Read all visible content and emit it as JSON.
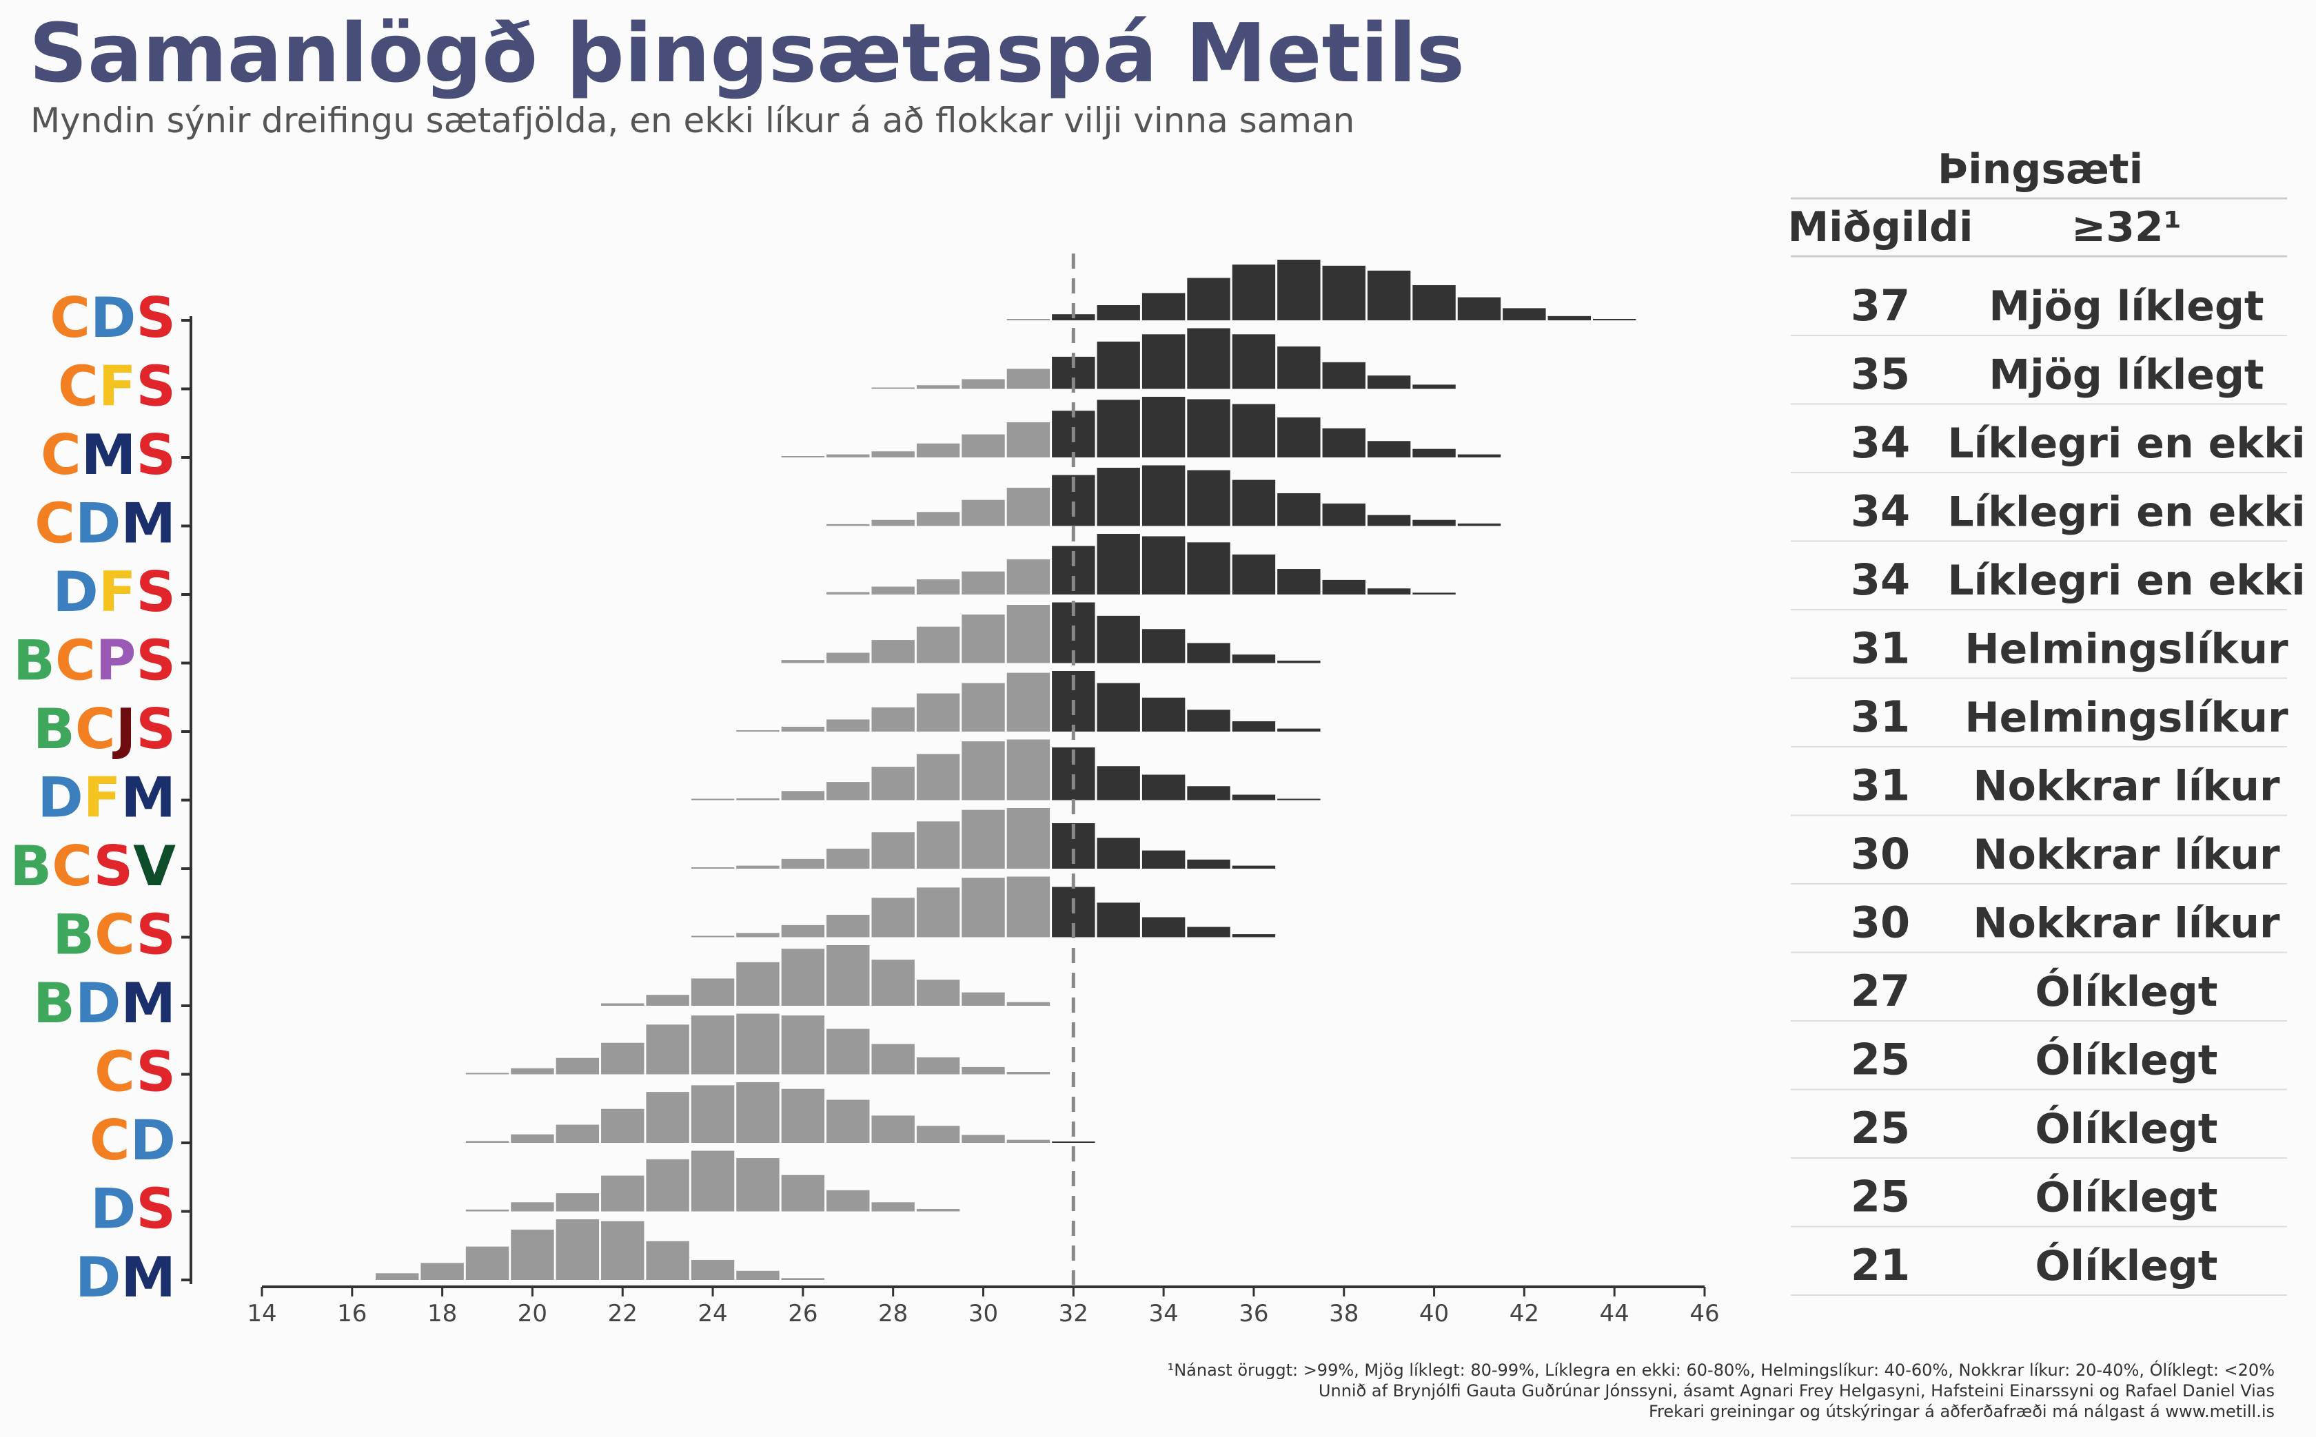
{
  "title": "Samanlögð þingsætaspá Metils",
  "subtitle": "Myndin sýnir dreifingu sætafjölda, en ekki líkur á að flokkar vilji vinna saman",
  "table": {
    "header_top": "Þingsæti",
    "col_median": "Miðgildi",
    "col_prob": "≥32¹"
  },
  "footer": {
    "note": "¹Nánast öruggt: >99%, Mjög líklegt: 80-99%, Líklegra en ekki: 60-80%, Helmingslíkur: 40-60%, Nokkrar líkur: 20-40%, Ólíklegt: <20%",
    "credit": "Unnið af Brynjólfi Gauta Guðrúnar Jónssyni, ásamt Agnari Frey Helgasyni, Hafsteini Einarssyni og Rafael Daniel Vias",
    "more": "Frekari greiningar og útskýringar á aðferðafræði má nálgast á www.metill.is"
  },
  "party_colors": {
    "B": "#3fa75c",
    "C": "#f28022",
    "D": "#3b7fbf",
    "F": "#f5c31f",
    "J": "#6e0c10",
    "M": "#1b2f6d",
    "P": "#9b59b6",
    "S": "#e0262a",
    "V": "#0e4d2a"
  },
  "bar_colors": {
    "below": "#999999",
    "above": "#333333"
  },
  "chart_data": {
    "type": "bar",
    "subtype": "stacked-histograms",
    "xlim": [
      14,
      46
    ],
    "x_ticks": [
      14,
      16,
      18,
      20,
      22,
      24,
      26,
      28,
      30,
      32,
      34,
      36,
      38,
      40,
      42,
      44,
      46
    ],
    "threshold": 32,
    "threshold_style": "dashed",
    "grid": false,
    "rows": [
      {
        "label": "CDS",
        "median": 37,
        "prob": "Mjög líklegt",
        "x_start": 31,
        "values": [
          0.02,
          0.1,
          0.25,
          0.45,
          0.7,
          0.92,
          1.0,
          0.9,
          0.82,
          0.58,
          0.38,
          0.2,
          0.07,
          0.02
        ]
      },
      {
        "label": "CFS",
        "median": 35,
        "prob": "Mjög líklegt",
        "x_start": 28,
        "values": [
          0.02,
          0.06,
          0.16,
          0.33,
          0.53,
          0.78,
          0.9,
          1.0,
          0.9,
          0.7,
          0.44,
          0.22,
          0.07
        ]
      },
      {
        "label": "CMS",
        "median": 34,
        "prob": "Líklegri en ekki",
        "x_start": 26,
        "values": [
          0.02,
          0.05,
          0.1,
          0.23,
          0.38,
          0.58,
          0.77,
          0.95,
          1.0,
          0.96,
          0.88,
          0.66,
          0.48,
          0.27,
          0.14,
          0.05
        ]
      },
      {
        "label": "CDM",
        "median": 34,
        "prob": "Líklegri en ekki",
        "x_start": 27,
        "values": [
          0.03,
          0.1,
          0.23,
          0.43,
          0.63,
          0.84,
          0.96,
          1.0,
          0.92,
          0.76,
          0.54,
          0.37,
          0.18,
          0.1,
          0.04
        ]
      },
      {
        "label": "DFS",
        "median": 34,
        "prob": "Líklegri en ekki",
        "x_start": 27,
        "values": [
          0.04,
          0.13,
          0.25,
          0.38,
          0.58,
          0.8,
          1.0,
          0.96,
          0.86,
          0.66,
          0.42,
          0.24,
          0.1,
          0.03
        ]
      },
      {
        "label": "BCPS",
        "median": 31,
        "prob": "Helmingslíkur",
        "x_start": 26,
        "values": [
          0.05,
          0.17,
          0.38,
          0.6,
          0.8,
          0.96,
          1.0,
          0.78,
          0.56,
          0.33,
          0.14,
          0.04
        ]
      },
      {
        "label": "BCJS",
        "median": 31,
        "prob": "Helmingslíkur",
        "x_start": 25,
        "values": [
          0.02,
          0.08,
          0.2,
          0.4,
          0.63,
          0.8,
          0.97,
          1.0,
          0.8,
          0.56,
          0.36,
          0.17,
          0.05
        ]
      },
      {
        "label": "DFM",
        "median": 31,
        "prob": "Nokkrar líkur",
        "x_start": 24,
        "values": [
          0.01,
          0.03,
          0.15,
          0.3,
          0.55,
          0.76,
          0.97,
          1.0,
          0.87,
          0.56,
          0.42,
          0.23,
          0.09,
          0.02
        ]
      },
      {
        "label": "BCSV",
        "median": 30,
        "prob": "Nokkrar líkur",
        "x_start": 24,
        "values": [
          0.01,
          0.05,
          0.16,
          0.33,
          0.6,
          0.78,
          0.97,
          1.0,
          0.75,
          0.51,
          0.3,
          0.15,
          0.05
        ]
      },
      {
        "label": "BCS",
        "median": 30,
        "prob": "Nokkrar líkur",
        "x_start": 24,
        "values": [
          0.02,
          0.07,
          0.2,
          0.37,
          0.65,
          0.82,
          0.98,
          1.0,
          0.83,
          0.57,
          0.33,
          0.17,
          0.05
        ]
      },
      {
        "label": "BDM",
        "median": 27,
        "prob": "Ólíklegt",
        "x_start": 22,
        "values": [
          0.04,
          0.18,
          0.45,
          0.72,
          0.94,
          1.0,
          0.76,
          0.43,
          0.22,
          0.06
        ]
      },
      {
        "label": "CS",
        "median": 25,
        "prob": "Ólíklegt",
        "x_start": 19,
        "values": [
          0.02,
          0.1,
          0.27,
          0.52,
          0.82,
          0.97,
          1.0,
          0.97,
          0.75,
          0.5,
          0.28,
          0.12,
          0.04
        ]
      },
      {
        "label": "CD",
        "median": 25,
        "prob": "Ólíklegt",
        "x_start": 19,
        "values": [
          0.03,
          0.14,
          0.3,
          0.56,
          0.84,
          0.95,
          1.0,
          0.89,
          0.71,
          0.45,
          0.28,
          0.13,
          0.05,
          0.02
        ]
      },
      {
        "label": "DS",
        "median": 25,
        "prob": "Ólíklegt",
        "x_start": 19,
        "values": [
          0.03,
          0.15,
          0.3,
          0.59,
          0.86,
          1.0,
          0.88,
          0.6,
          0.35,
          0.15,
          0.04
        ]
      },
      {
        "label": "DM",
        "median": 21,
        "prob": "Ólíklegt",
        "x_start": 17,
        "values": [
          0.11,
          0.28,
          0.55,
          0.83,
          1.0,
          0.97,
          0.64,
          0.33,
          0.15,
          0.03
        ]
      }
    ]
  }
}
